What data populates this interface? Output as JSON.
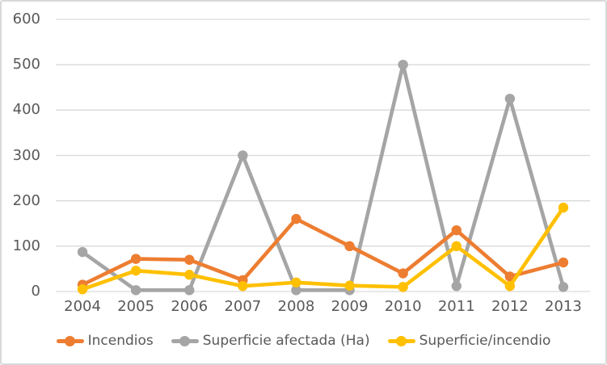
{
  "window": {
    "background": "#FFFFFF",
    "border_color": "#D9D9D9"
  },
  "chart_data": {
    "type": "line",
    "title": "",
    "xlabel": "",
    "ylabel": "",
    "categories": [
      "2004",
      "2005",
      "2006",
      "2007",
      "2008",
      "2009",
      "2010",
      "2011",
      "2012",
      "2013"
    ],
    "series": [
      {
        "name": "Incendios",
        "color": "#ED7D31",
        "values": [
          15,
          72,
          70,
          25,
          160,
          100,
          40,
          135,
          33,
          64
        ]
      },
      {
        "name": "Superficie afectada (Ha)",
        "color": "#A5A5A5",
        "values": [
          87,
          3,
          3,
          300,
          3,
          3,
          500,
          12,
          425,
          10
        ]
      },
      {
        "name": "Superficie/incendio",
        "color": "#FFC000",
        "values": [
          5,
          46,
          37,
          12,
          20,
          13,
          10,
          100,
          12,
          185
        ]
      }
    ],
    "ylim": [
      0,
      600
    ],
    "yticks": [
      600,
      500,
      400,
      300,
      200,
      100,
      0
    ],
    "grid": true,
    "gridline_color": "#D9D9D9",
    "axis_text_color": "#595959",
    "marker": "circle",
    "legend_position": "bottom"
  }
}
